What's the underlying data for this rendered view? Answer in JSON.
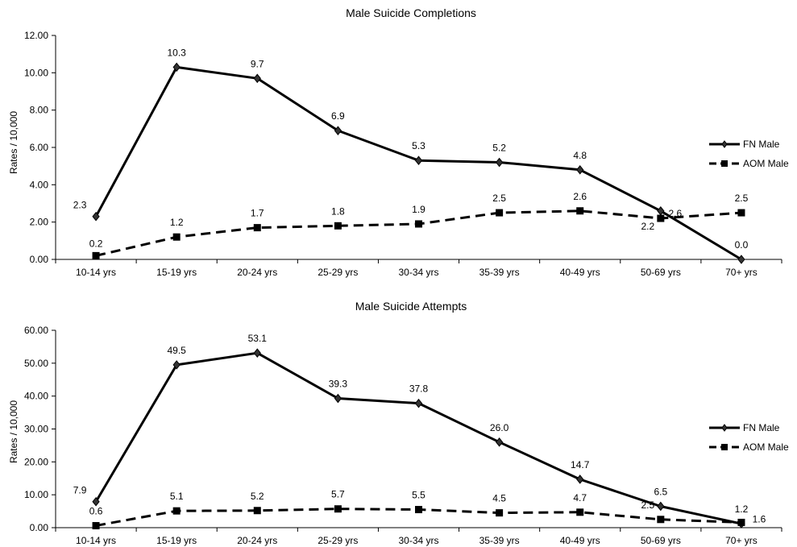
{
  "chart_data": [
    {
      "type": "line",
      "title": "Male Suicide Completions",
      "xlabel": "",
      "ylabel": "Rates / 10,000",
      "ylim": [
        0,
        12
      ],
      "ytick_labels": [
        "0.00",
        "2.00",
        "4.00",
        "6.00",
        "8.00",
        "10.00",
        "12.00"
      ],
      "categories": [
        "10-14 yrs",
        "15-19 yrs",
        "20-24 yrs",
        "25-29 yrs",
        "30-34 yrs",
        "35-39 yrs",
        "40-49 yrs",
        "50-69 yrs",
        "70+ yrs"
      ],
      "series": [
        {
          "name": "FN Male",
          "style": "solid",
          "marker": "diamond",
          "color": "#000000",
          "values": [
            2.3,
            10.3,
            9.7,
            6.9,
            5.3,
            5.2,
            4.8,
            2.6,
            0.0
          ],
          "labels": [
            "2.3",
            "10.3",
            "9.7",
            "6.9",
            "5.3",
            "5.2",
            "4.8",
            "2.6",
            "0.0"
          ]
        },
        {
          "name": "AOM Male",
          "style": "dashed",
          "marker": "square",
          "color": "#000000",
          "values": [
            0.2,
            1.2,
            1.7,
            1.8,
            1.9,
            2.5,
            2.6,
            2.2,
            2.5
          ],
          "labels": [
            "0.2",
            "1.2",
            "1.7",
            "1.8",
            "1.9",
            "2.5",
            "2.6",
            "2.2",
            "2.5"
          ]
        }
      ],
      "legend": "right",
      "grid": false
    },
    {
      "type": "line",
      "title": "Male Suicide Attempts",
      "xlabel": "",
      "ylabel": "Rates / 10,000",
      "ylim": [
        0,
        60
      ],
      "ytick_labels": [
        "0.00",
        "10.00",
        "20.00",
        "30.00",
        "40.00",
        "50.00",
        "60.00"
      ],
      "categories": [
        "10-14 yrs",
        "15-19 yrs",
        "20-24 yrs",
        "25-29 yrs",
        "30-34 yrs",
        "35-39 yrs",
        "40-49 yrs",
        "50-69 yrs",
        "70+ yrs"
      ],
      "series": [
        {
          "name": "FN Male",
          "style": "solid",
          "marker": "diamond",
          "color": "#000000",
          "values": [
            7.9,
            49.5,
            53.1,
            39.3,
            37.8,
            26.0,
            14.7,
            6.5,
            1.2
          ],
          "labels": [
            "7.9",
            "49.5",
            "53.1",
            "39.3",
            "37.8",
            "26.0",
            "14.7",
            "6.5",
            "1.2"
          ]
        },
        {
          "name": "AOM Male",
          "style": "dashed",
          "marker": "square",
          "color": "#000000",
          "values": [
            0.6,
            5.1,
            5.2,
            5.7,
            5.5,
            4.5,
            4.7,
            2.5,
            1.6
          ],
          "labels": [
            "0.6",
            "5.1",
            "5.2",
            "5.7",
            "5.5",
            "4.5",
            "4.7",
            "2.5",
            "1.6"
          ]
        }
      ],
      "legend": "right",
      "grid": false
    }
  ]
}
